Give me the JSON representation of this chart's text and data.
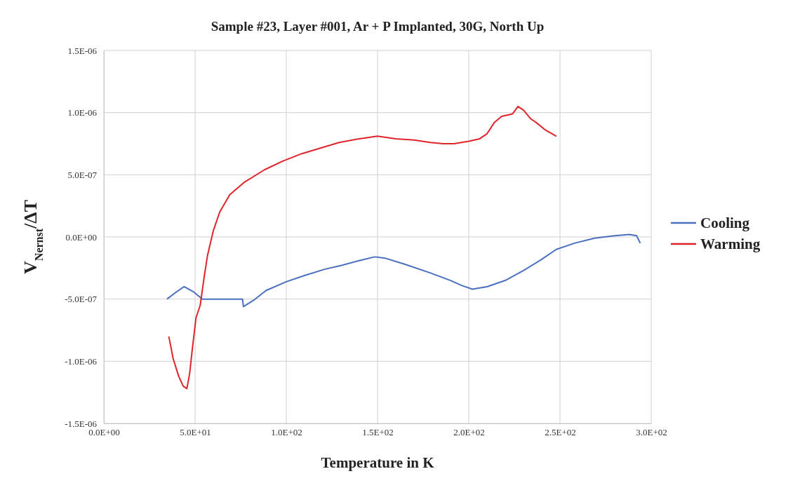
{
  "chart_data": {
    "type": "line",
    "title": "Sample #23, Layer #001, Ar + P Implanted, 30G, North Up",
    "xlabel": "Temperature in K",
    "ylabel": "V$_{Nernst}$/ΔT",
    "xlim": [
      0,
      300
    ],
    "xticks": [
      {
        "value": 0,
        "label": "0.0E+00"
      },
      {
        "value": 50,
        "label": "5.0E+01"
      },
      {
        "value": 100,
        "label": "1.0E+02"
      },
      {
        "value": 150,
        "label": "1.5E+02"
      },
      {
        "value": 200,
        "label": "2.0E+02"
      },
      {
        "value": 250,
        "label": "2.5E+02"
      },
      {
        "value": 300,
        "label": "3.0E+02"
      }
    ],
    "ylim": [
      -1.5e-06,
      1.5e-06
    ],
    "yticks": [
      {
        "value": -1.5e-06,
        "label": "-1.5E-06"
      },
      {
        "value": -1e-06,
        "label": "-1.0E-06"
      },
      {
        "value": -5e-07,
        "label": "-5.0E-07"
      },
      {
        "value": 0,
        "label": "0.0E+00"
      },
      {
        "value": 5e-07,
        "label": "5.0E-07"
      },
      {
        "value": 1e-06,
        "label": "1.0E-06"
      },
      {
        "value": 1.5e-06,
        "label": "1.5E-06"
      }
    ],
    "grid": true,
    "legend": "right",
    "marker": "none",
    "line_style": "solid",
    "series": [
      {
        "name": "Cooling",
        "color": "#4a6fc0",
        "x": [
          34.6,
          40,
          44,
          49,
          54,
          60,
          66,
          72,
          76,
          76.5,
          82,
          89,
          100,
          110,
          121,
          130,
          140,
          148.5,
          154,
          165,
          179,
          190,
          196,
          202,
          210,
          220,
          230,
          240,
          248,
          258,
          269,
          280,
          288,
          292,
          294
        ],
        "values": [
          -5e-07,
          -4.4e-07,
          -4e-07,
          -4.4e-07,
          -5e-07,
          -5e-07,
          -5e-07,
          -5e-07,
          -5e-07,
          -5.6e-07,
          -5.1e-07,
          -4.3e-07,
          -3.6e-07,
          -3.1e-07,
          -2.6e-07,
          -2.3e-07,
          -1.9e-07,
          -1.6e-07,
          -1.7e-07,
          -2.2e-07,
          -2.9e-07,
          -3.5e-07,
          -3.9e-07,
          -4.2e-07,
          -4e-07,
          -3.5e-07,
          -2.7e-07,
          -1.8e-07,
          -1e-07,
          -5e-08,
          -1e-08,
          1e-08,
          2e-08,
          1e-08,
          -5e-08
        ]
      },
      {
        "name": "Warming",
        "color": "#e0242c",
        "x": [
          35.6,
          38,
          41,
          43.5,
          45.5,
          47,
          48.5,
          50.5,
          52.8,
          55,
          56.8,
          60,
          63.5,
          69,
          77,
          88,
          98,
          108.5,
          120,
          129,
          140,
          150,
          160,
          170,
          179,
          186,
          192,
          200,
          206,
          210,
          214,
          218,
          221,
          224,
          227,
          230,
          234,
          237,
          242,
          248
        ],
        "values": [
          -8e-07,
          -9.8e-07,
          -1.12e-06,
          -1.2e-06,
          -1.22e-06,
          -1.1e-06,
          -9e-07,
          -6.5e-07,
          -5.5e-07,
          -3.2e-07,
          -1.5e-07,
          5e-08,
          2e-07,
          3.4e-07,
          4.4e-07,
          5.4e-07,
          6.1e-07,
          6.7e-07,
          7.2e-07,
          7.6e-07,
          7.9e-07,
          8.1e-07,
          7.9e-07,
          7.8e-07,
          7.6e-07,
          7.5e-07,
          7.5e-07,
          7.7e-07,
          7.9e-07,
          8.3e-07,
          9.2e-07,
          9.7e-07,
          9.8e-07,
          9.9e-07,
          1.05e-06,
          1.02e-06,
          9.5e-07,
          9.2e-07,
          8.6e-07,
          8.1e-07
        ]
      }
    ]
  }
}
